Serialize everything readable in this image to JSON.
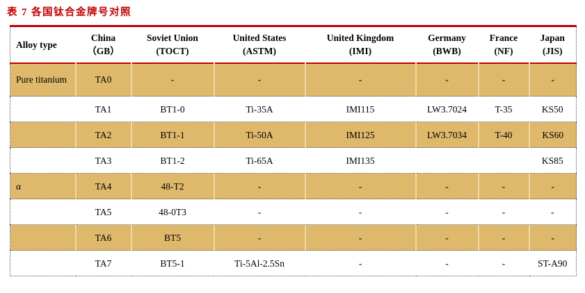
{
  "title": "表 7 各国钛合金牌号对照",
  "colors": {
    "accent_red": "#c00000",
    "row_highlight": "#deb96b",
    "highlight_divider": "#eed9a4",
    "dotted_border": "#555555"
  },
  "table": {
    "columns": [
      {
        "label": "Alloy type",
        "sub": ""
      },
      {
        "label": "China",
        "sub": "（GB）"
      },
      {
        "label": "Soviet Union",
        "sub": "(TOCT)"
      },
      {
        "label": "United States",
        "sub": "(ASTM)"
      },
      {
        "label": "United Kingdom",
        "sub": "(IMI)"
      },
      {
        "label": "Germany",
        "sub": "(BWB)"
      },
      {
        "label": "France",
        "sub": "(NF)"
      },
      {
        "label": "Japan",
        "sub": "(JIS)"
      }
    ],
    "rows": [
      {
        "highlight": true,
        "cells": [
          "Pure titanium",
          "TA0",
          "-",
          "-",
          "-",
          "-",
          "-",
          "-"
        ]
      },
      {
        "highlight": false,
        "cells": [
          "",
          "TA1",
          "BT1-0",
          "Ti-35A",
          "IMI115",
          "LW3.7024",
          "T-35",
          "KS50"
        ]
      },
      {
        "highlight": true,
        "cells": [
          "",
          "TA2",
          "BT1-1",
          "Ti-50A",
          "IMI125",
          "LW3.7034",
          "T-40",
          "KS60"
        ]
      },
      {
        "highlight": false,
        "cells": [
          "",
          "TA3",
          "BT1-2",
          "Ti-65A",
          "IMI135",
          "",
          "",
          "KS85"
        ]
      },
      {
        "highlight": true,
        "cells": [
          "α",
          "TA4",
          "48-T2",
          "-",
          "-",
          "-",
          "-",
          "-"
        ]
      },
      {
        "highlight": false,
        "cells": [
          "",
          "TA5",
          "48-0T3",
          "-",
          "-",
          "-",
          "-",
          "-"
        ]
      },
      {
        "highlight": true,
        "cells": [
          "",
          "TA6",
          "BT5",
          "-",
          "-",
          "-",
          "-",
          "-"
        ]
      },
      {
        "highlight": false,
        "cells": [
          "",
          "TA7",
          "BT5-1",
          "Ti-5Al-2.5Sn",
          "-",
          "-",
          "-",
          "ST-A90"
        ]
      }
    ]
  }
}
